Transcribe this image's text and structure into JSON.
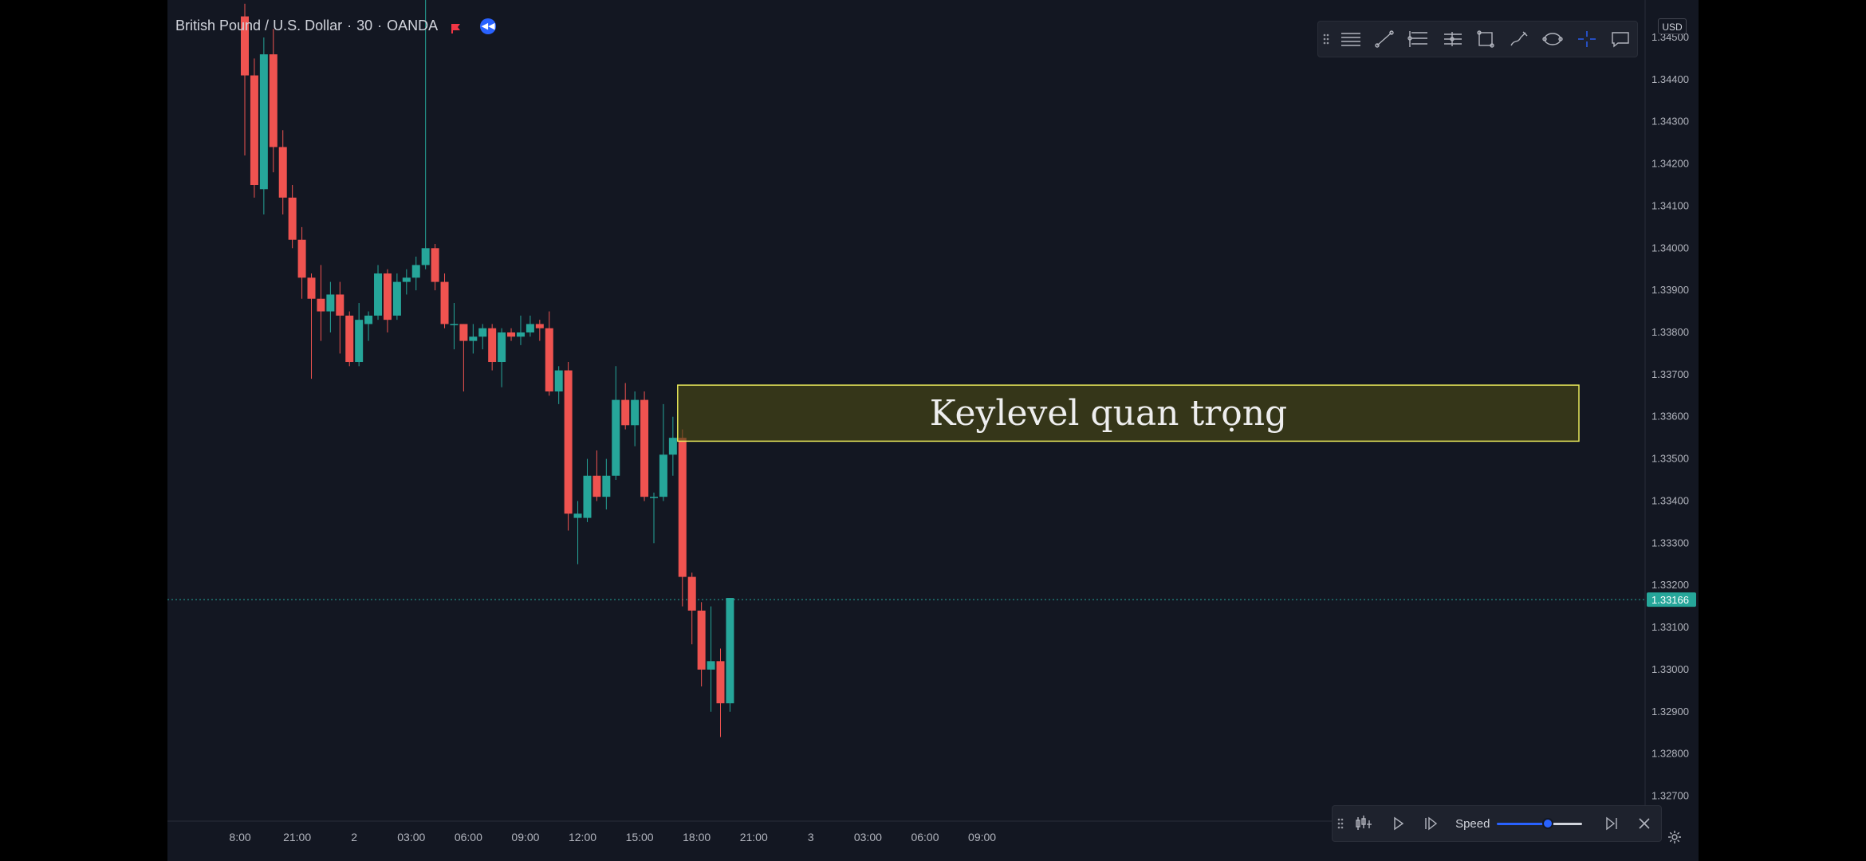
{
  "symbol": {
    "name": "British Pound / U.S. Dollar",
    "interval": "30",
    "exchange": "OANDA",
    "flag_color": "#f23645",
    "replay_icon": "rewind-icon"
  },
  "currency": "USD",
  "drawing_toolbar": {
    "tools": [
      "horizontal-lines-icon",
      "trend-line-icon",
      "fib-retracement-icon",
      "pitchfork-icon",
      "rectangle-icon",
      "brush-icon",
      "ellipse-icon",
      "crosshair-icon",
      "comment-icon"
    ]
  },
  "replay_bar": {
    "speed_label": "Speed",
    "speed_value": 0.58,
    "controls": [
      "select-bar-icon",
      "play-icon",
      "step-forward-icon",
      "jump-to-realtime-icon",
      "close-icon"
    ]
  },
  "key_level": {
    "label": "Keylevel quan trọng",
    "top_price": 1.33675,
    "bottom_price": 1.33542,
    "start_bar": 46,
    "fill": "#4a4a14",
    "border": "#e8e85a"
  },
  "colors": {
    "up": "#26a69a",
    "down": "#ef5350",
    "background": "#131722",
    "text": "#b2b5be",
    "grid_line": "#1f2a35"
  },
  "chart_data": {
    "type": "candlestick",
    "title": "British Pound / U.S. Dollar · 30 · OANDA",
    "last_price": "1.33166",
    "y_ticks": [
      "1.34500",
      "1.34400",
      "1.34300",
      "1.34200",
      "1.34100",
      "1.34000",
      "1.33900",
      "1.33800",
      "1.33700",
      "1.33600",
      "1.33500",
      "1.33400",
      "1.33300",
      "1.33200",
      "1.33100",
      "1.33000",
      "1.32900",
      "1.32800",
      "1.32700"
    ],
    "ylim": [
      1.3266,
      1.3455
    ],
    "x_ticks": [
      {
        "label": "8:00",
        "bar": -0.5
      },
      {
        "label": "21:00",
        "bar": 5.5
      },
      {
        "label": "2",
        "bar": 11.5
      },
      {
        "label": "03:00",
        "bar": 17.5
      },
      {
        "label": "06:00",
        "bar": 23.5
      },
      {
        "label": "09:00",
        "bar": 29.5
      },
      {
        "label": "12:00",
        "bar": 35.5
      },
      {
        "label": "15:00",
        "bar": 41.5
      },
      {
        "label": "18:00",
        "bar": 47.5
      },
      {
        "label": "21:00",
        "bar": 53.5
      },
      {
        "label": "3",
        "bar": 59.5
      },
      {
        "label": "03:00",
        "bar": 65.5
      },
      {
        "label": "06:00",
        "bar": 71.5
      },
      {
        "label": "09:00",
        "bar": 77.5
      }
    ],
    "ohlc": [
      [
        1.3455,
        1.3458,
        1.3422,
        1.3441
      ],
      [
        1.3441,
        1.3445,
        1.3412,
        1.3415
      ],
      [
        1.3414,
        1.345,
        1.3408,
        1.3446
      ],
      [
        1.3446,
        1.3452,
        1.3418,
        1.3424
      ],
      [
        1.3424,
        1.3428,
        1.3408,
        1.3412
      ],
      [
        1.3412,
        1.3415,
        1.34,
        1.3402
      ],
      [
        1.3402,
        1.3405,
        1.3388,
        1.3393
      ],
      [
        1.3393,
        1.3394,
        1.3369,
        1.3388
      ],
      [
        1.3388,
        1.3396,
        1.3378,
        1.3385
      ],
      [
        1.3385,
        1.3392,
        1.338,
        1.3389
      ],
      [
        1.3389,
        1.3392,
        1.3375,
        1.3384
      ],
      [
        1.3384,
        1.3385,
        1.3372,
        1.3373
      ],
      [
        1.3373,
        1.3387,
        1.3372,
        1.3383
      ],
      [
        1.3382,
        1.3385,
        1.3378,
        1.3384
      ],
      [
        1.3384,
        1.3396,
        1.3383,
        1.3394
      ],
      [
        1.3394,
        1.3395,
        1.338,
        1.3383
      ],
      [
        1.3384,
        1.3394,
        1.3383,
        1.3392
      ],
      [
        1.3392,
        1.3395,
        1.3389,
        1.3393
      ],
      [
        1.3393,
        1.3398,
        1.339,
        1.3396
      ],
      [
        1.3396,
        1.4001,
        1.3395,
        1.34
      ],
      [
        1.34,
        1.3401,
        1.339,
        1.3392
      ],
      [
        1.3392,
        1.3394,
        1.3381,
        1.3382
      ],
      [
        1.3382,
        1.3387,
        1.3376,
        1.3382
      ],
      [
        1.3382,
        1.3382,
        1.3366,
        1.3378
      ],
      [
        1.3378,
        1.3382,
        1.3375,
        1.3379
      ],
      [
        1.3379,
        1.3382,
        1.3376,
        1.3381
      ],
      [
        1.3381,
        1.3382,
        1.3371,
        1.3373
      ],
      [
        1.3373,
        1.3381,
        1.3367,
        1.338
      ],
      [
        1.338,
        1.3381,
        1.3378,
        1.3379
      ],
      [
        1.3379,
        1.3384,
        1.3377,
        1.338
      ],
      [
        1.338,
        1.3384,
        1.3379,
        1.3382
      ],
      [
        1.3382,
        1.3383,
        1.3378,
        1.3381
      ],
      [
        1.3381,
        1.3385,
        1.3365,
        1.3366
      ],
      [
        1.3366,
        1.3372,
        1.3363,
        1.3371
      ],
      [
        1.3371,
        1.3373,
        1.3333,
        1.3337
      ],
      [
        1.3336,
        1.334,
        1.3325,
        1.3337
      ],
      [
        1.3336,
        1.335,
        1.3335,
        1.3346
      ],
      [
        1.3346,
        1.3352,
        1.334,
        1.3341
      ],
      [
        1.3341,
        1.335,
        1.3338,
        1.3346
      ],
      [
        1.3346,
        1.3372,
        1.3345,
        1.3364
      ],
      [
        1.3364,
        1.3368,
        1.3357,
        1.3358
      ],
      [
        1.3358,
        1.3366,
        1.3353,
        1.3364
      ],
      [
        1.3364,
        1.3366,
        1.334,
        1.3341
      ],
      [
        1.3341,
        1.3342,
        1.333,
        1.3341
      ],
      [
        1.3341,
        1.3363,
        1.334,
        1.3351
      ],
      [
        1.3351,
        1.336,
        1.3346,
        1.3355
      ],
      [
        1.3355,
        1.3357,
        1.3315,
        1.3322
      ],
      [
        1.3322,
        1.3323,
        1.3306,
        1.3314
      ],
      [
        1.3314,
        1.3316,
        1.3296,
        1.33
      ],
      [
        1.33,
        1.3315,
        1.329,
        1.3302
      ],
      [
        1.3302,
        1.3305,
        1.3284,
        1.3292
      ],
      [
        1.3292,
        1.3317,
        1.329,
        1.3317
      ]
    ]
  }
}
